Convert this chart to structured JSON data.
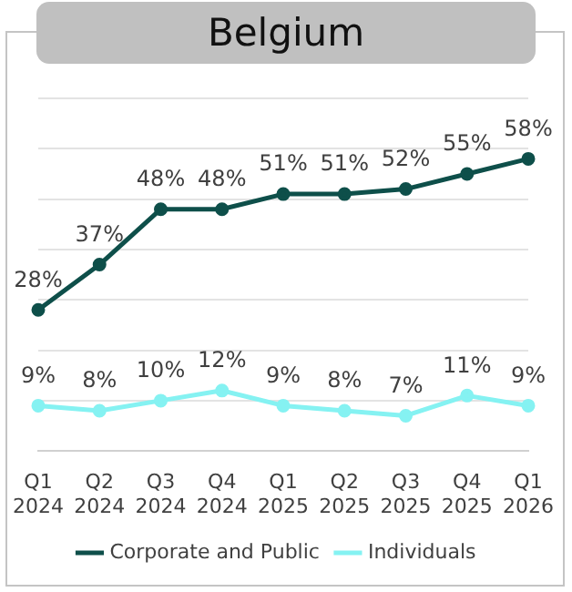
{
  "chart_data": {
    "type": "line",
    "title": "Belgium",
    "categories": [
      "Q1\n2024",
      "Q2\n2024",
      "Q3\n2024",
      "Q4\n2024",
      "Q1\n2025",
      "Q2\n2025",
      "Q3\n2025",
      "Q4\n2025",
      "Q1\n2026"
    ],
    "series": [
      {
        "name": "Corporate and Public",
        "color": "#0e4f4a",
        "values": [
          28,
          37,
          48,
          48,
          51,
          51,
          52,
          55,
          58
        ],
        "value_labels": [
          "28%",
          "37%",
          "48%",
          "48%",
          "51%",
          "51%",
          "52%",
          "55%",
          "58%"
        ]
      },
      {
        "name": "Individuals",
        "color": "#85f2f2",
        "values": [
          9,
          8,
          10,
          12,
          9,
          8,
          7,
          11,
          9
        ],
        "value_labels": [
          "9%",
          "8%",
          "10%",
          "12%",
          "9%",
          "8%",
          "7%",
          "11%",
          "9%"
        ]
      }
    ],
    "ylim": [
      0,
      70
    ],
    "yticks": [
      {
        "value": 0,
        "label": null
      },
      {
        "value": 10,
        "label": null
      },
      {
        "value": 20,
        "label": null
      },
      {
        "value": 30,
        "label": null
      },
      {
        "value": 40,
        "label": null
      },
      {
        "value": 50,
        "label": null
      },
      {
        "value": 60,
        "label": null
      },
      {
        "value": 70,
        "label": null
      }
    ],
    "tick_labels": "x",
    "grid": "y",
    "legend": "bottom",
    "marker": "circle",
    "line_style": "solid"
  }
}
